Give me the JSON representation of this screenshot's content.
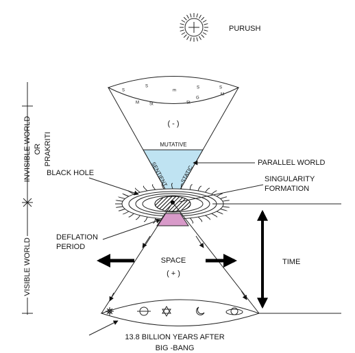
{
  "title": "PURUSH",
  "left_axis": {
    "invisible": [
      "INVISIBLE WORLD",
      "OR",
      "PRAKRITI"
    ],
    "visible": "VISIBLE WORLD"
  },
  "top_cone": {
    "sign": "( - )",
    "symbols": [
      "S",
      "S",
      "m",
      "S",
      "S",
      "M",
      "M",
      "St",
      "G",
      "St"
    ],
    "mutative": "MUTATIVE",
    "sentient": "SENTIENT",
    "static": "STATIC"
  },
  "labels": {
    "parallel_world": "PARALLEL WORLD",
    "black_hole": "BLACK HOLE",
    "singularity": [
      "SINGULARITY",
      "FORMATION"
    ],
    "deflation": [
      "DEFLATION",
      "PERIOD"
    ],
    "space": "SPACE",
    "space_sign": "( + )",
    "time": "TIME",
    "bottom": [
      "13.8 BILLION YEARS AFTER",
      "BIG -BANG"
    ]
  }
}
